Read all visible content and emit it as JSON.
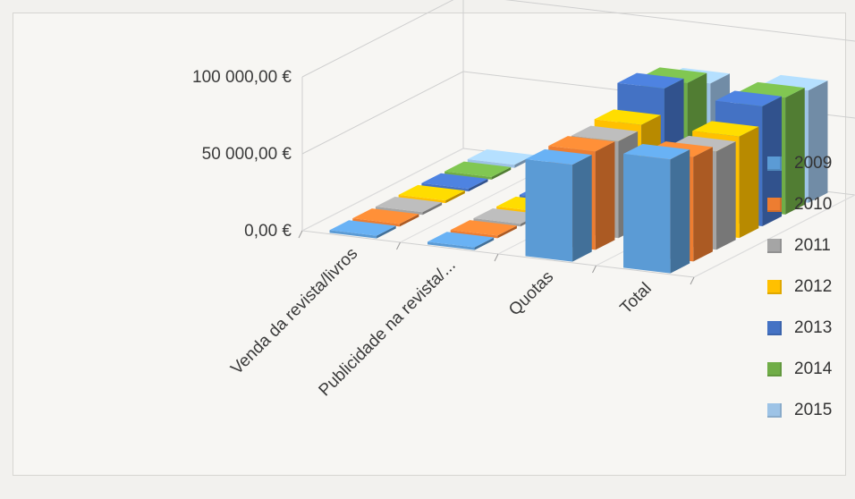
{
  "chart_data": {
    "type": "bar",
    "projection": "3d-clustered",
    "categories": [
      "Venda da revista/livros",
      "Publicidade na revista/...",
      "Quotas",
      "Total"
    ],
    "series": [
      {
        "name": "2009",
        "color": "#5b9bd5",
        "values": [
          300,
          500,
          63000,
          74000
        ]
      },
      {
        "name": "2010",
        "color": "#ed7d31",
        "values": [
          300,
          500,
          64000,
          68000
        ]
      },
      {
        "name": "2011",
        "color": "#a5a5a5",
        "values": [
          300,
          500,
          63000,
          64000
        ]
      },
      {
        "name": "2012",
        "color": "#ffc000",
        "values": [
          300,
          500,
          66000,
          66000
        ]
      },
      {
        "name": "2013",
        "color": "#4472c4",
        "values": [
          300,
          500,
          82000,
          78000
        ]
      },
      {
        "name": "2014",
        "color": "#70ad47",
        "values": [
          300,
          500,
          78000,
          76000
        ]
      },
      {
        "name": "2015",
        "color": "#9dc3e6",
        "values": [
          2000,
          500,
          70000,
          73000
        ]
      }
    ],
    "y_tick_labels": [
      "0,00 €",
      "50 000,00 €",
      "100 000,00 €"
    ],
    "y_ticks": [
      0,
      50000,
      100000
    ],
    "ylim": [
      0,
      100000
    ],
    "grid": true,
    "legend_position": "right"
  }
}
